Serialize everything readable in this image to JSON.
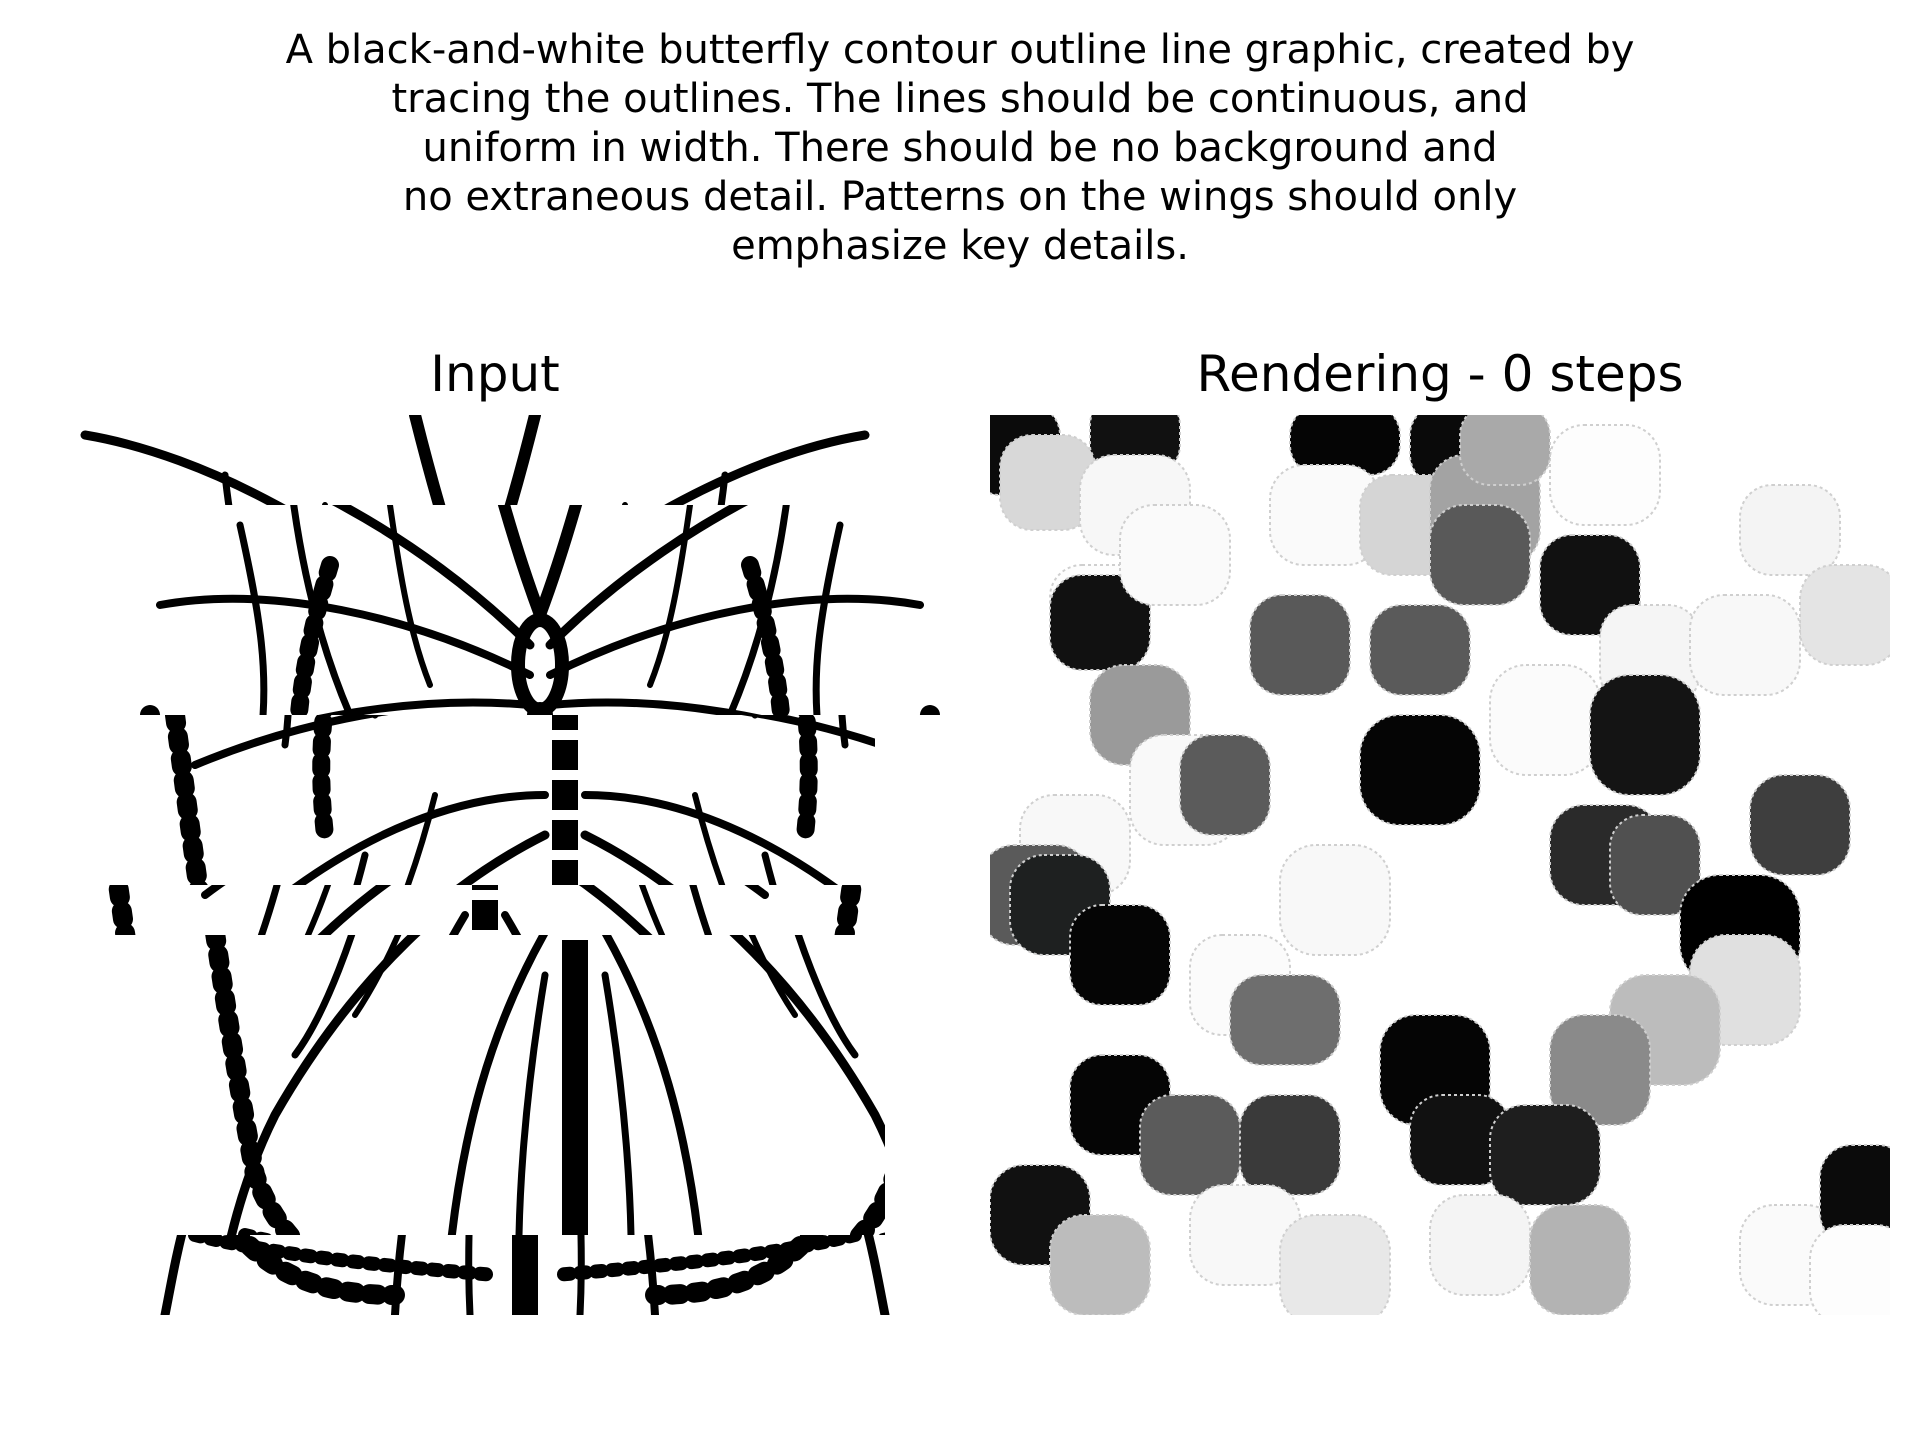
{
  "prompt": {
    "lines": [
      "A black-and-white butterfly contour outline line graphic, created by",
      "tracing the outlines. The lines should be continuous, and",
      "uniform in width. There should be no background and",
      "no extraneous detail. Patterns on the wings should only",
      "emphasize key details."
    ]
  },
  "panels": {
    "input": {
      "title": "Input",
      "image": "butterfly line-art (shuffled tiles)"
    },
    "rendering": {
      "title": "Rendering - 0 steps",
      "image": "grayscale rounded blob strokes"
    }
  },
  "colors": {
    "background": "#ffffff",
    "ink": "#000000"
  }
}
